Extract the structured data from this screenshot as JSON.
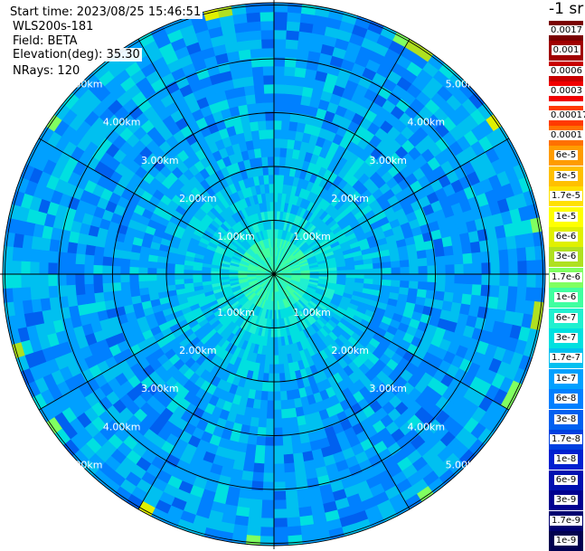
{
  "info": {
    "start_time": "Start time: 2023/08/25 15:46:51",
    "instrument": "WLS200s-181",
    "field": "Field: BETA",
    "elevation": "Elevation(deg): 35.30",
    "nrays": "NRays: 120"
  },
  "colorbar": {
    "units": "-1 sr",
    "labels": [
      "0.0017",
      "0.001",
      "0.0006",
      "0.0003",
      "0.00017",
      "0.0001",
      "6e-5",
      "3e-5",
      "1.7e-5",
      "1e-5",
      "6e-6",
      "3e-6",
      "1.7e-6",
      "1e-6",
      "6e-7",
      "3e-7",
      "1.7e-7",
      "1e-7",
      "6e-8",
      "3e-8",
      "1.7e-8",
      "1e-8",
      "6e-9",
      "3e-9",
      "1.7e-9",
      "1e-9"
    ],
    "colors": [
      "#7a0000",
      "#a00000",
      "#c80000",
      "#f00000",
      "#ff3a00",
      "#ff7000",
      "#ff9c00",
      "#ffc000",
      "#ffe000",
      "#ffff00",
      "#e0f000",
      "#b0e020",
      "#80ff60",
      "#40ffa0",
      "#20f0d0",
      "#00e0e0",
      "#00c0f0",
      "#00a0ff",
      "#0080ff",
      "#0060f0",
      "#0040e0",
      "#0020d0",
      "#0010b0",
      "#000090",
      "#000070",
      "#000050"
    ]
  },
  "range_labels": [
    "1.00km",
    "2.00km",
    "3.00km",
    "4.00km",
    "5.00km"
  ],
  "scan": {
    "ring_count": 30,
    "ray_count": 120,
    "palette": [
      "#00e0e0",
      "#20f0d0",
      "#40ffa0",
      "#00c0f0",
      "#00a0ff",
      "#0080ff",
      "#0060f0"
    ],
    "edge_palette": [
      "#80ff60",
      "#b0e020",
      "#e0f000"
    ]
  }
}
